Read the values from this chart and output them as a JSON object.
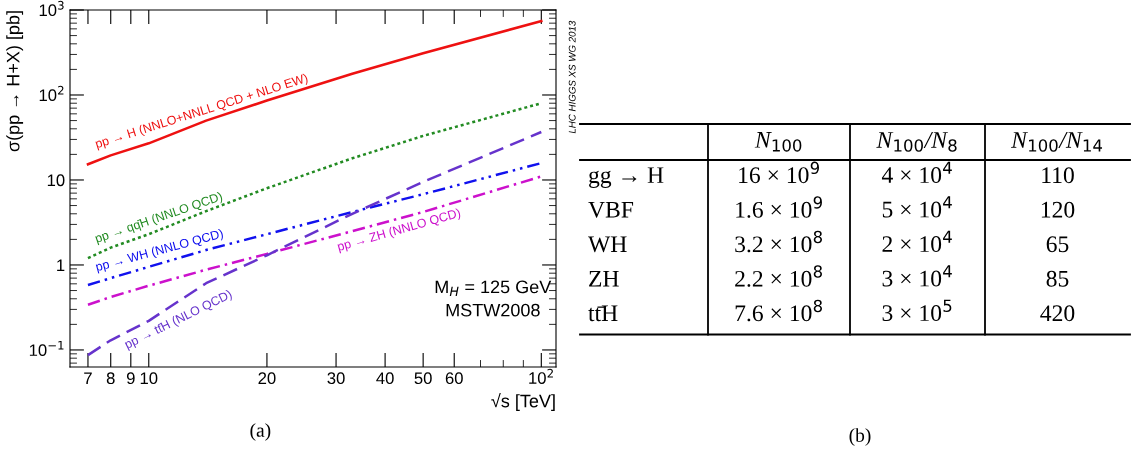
{
  "chart_data": [
    {
      "type": "line",
      "xlabel": "√s [TeV]",
      "ylabel": "σ(pp → H+X) [pb]",
      "log": "xy",
      "xlim": [
        6.3,
        109
      ],
      "ylim": [
        0.063,
        1000
      ],
      "xticks": [
        7,
        8,
        9,
        10,
        20,
        30,
        40,
        50,
        60,
        {
          "value": 100,
          "label": "10$^{2}$"
        }
      ],
      "yticks": [
        {
          "value": 0.1,
          "label": "10$^{−1}$"
        },
        1,
        10,
        {
          "value": 100,
          "label": "10$^{2}$"
        },
        {
          "value": 1000,
          "label": "10$^{3}$"
        }
      ],
      "x": [
        7,
        8,
        10,
        14,
        20,
        33,
        50,
        100
      ],
      "grid": false,
      "legend": false,
      "series": [
        {
          "name": "pp → H (NNLO+NNLL QCD + NLO EW)",
          "color": "#ee1111",
          "line_style": "solid",
          "values": [
            15.3,
            19.5,
            27,
            50,
            86,
            178,
            310,
            740
          ]
        },
        {
          "name": "pp → qq̄H (NNLO QCD)",
          "color": "#228b22",
          "line_style": "dotted",
          "values": [
            1.2,
            1.6,
            2.3,
            4.3,
            8,
            18,
            33,
            80
          ]
        },
        {
          "name": "pp → WH (NNLO QCD)",
          "color": "#1111ee",
          "line_style": "dashdotdot",
          "values": [
            0.58,
            0.7,
            0.95,
            1.5,
            2.3,
            4.2,
            6.8,
            15.8
          ]
        },
        {
          "name": "pp → ZH (NNLO QCD)",
          "color": "#cc11cc",
          "line_style": "dashdot",
          "values": [
            0.34,
            0.42,
            0.57,
            0.88,
            1.35,
            2.5,
            4.2,
            11
          ]
        },
        {
          "name": "pp → tt̄H (NLO QCD)",
          "color": "#6633cc",
          "line_style": "dashed",
          "values": [
            0.087,
            0.13,
            0.22,
            0.61,
            1.3,
            4.0,
            9.5,
            36.7
          ]
        }
      ],
      "annotations": [
        "M$_{H}$ = 125 GeV",
        "MSTW2008",
        "LHC HIGGS XS WG 2013",
        "(a)"
      ]
    },
    {
      "type": "other",
      "categories": [
        "N$_{100}$",
        "N$_{100}$/N$_{8}$",
        "N$_{100}$/N$_{14}$"
      ],
      "y_categories": [
        "gg → H",
        "VBF",
        "WH",
        "ZH",
        "tt̄H"
      ],
      "cell_labels": [
        [
          "16 × 10$^{9}$",
          "4 × 10$^{4}$",
          "110"
        ],
        [
          "1.6 × 10$^{9}$",
          "5 × 10$^{4}$",
          "120"
        ],
        [
          "3.2 × 10$^{8}$",
          "2 × 10$^{4}$",
          "65"
        ],
        [
          "2.2 × 10$^{8}$",
          "3 × 10$^{4}$",
          "85"
        ],
        [
          "7.6 × 10$^{8}$",
          "3 × 10$^{5}$",
          "420"
        ]
      ],
      "annotations": [
        "(b)"
      ]
    }
  ]
}
